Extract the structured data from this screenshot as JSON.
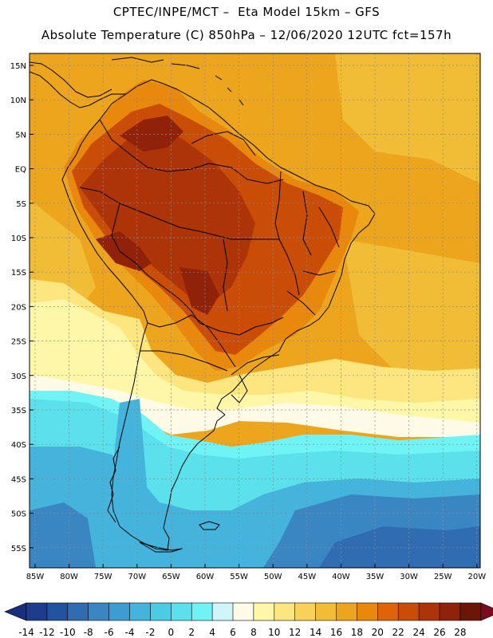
{
  "header": {
    "line1": "CPTEC/INPE/MCT –  Eta Model 15km – GFS",
    "line2": "Absolute Temperature (C) 850hPa – 12/06/2020 12UTC fct=157h"
  },
  "axes": {
    "lat_labels": [
      "15N",
      "10N",
      "5N",
      "EQ",
      "5S",
      "10S",
      "15S",
      "20S",
      "25S",
      "30S",
      "35S",
      "40S",
      "45S",
      "50S",
      "55S"
    ],
    "lon_labels": [
      "85W",
      "80W",
      "75W",
      "70W",
      "65W",
      "60W",
      "55W",
      "50W",
      "45W",
      "40W",
      "35W",
      "30W",
      "25W",
      "20W"
    ],
    "lat_values": [
      15,
      10,
      5,
      0,
      -5,
      -10,
      -15,
      -20,
      -25,
      -30,
      -35,
      -40,
      -45,
      -50,
      -55
    ],
    "lon_values": [
      -85,
      -80,
      -75,
      -70,
      -65,
      -60,
      -55,
      -50,
      -45,
      -40,
      -35,
      -30,
      -25,
      -20
    ]
  },
  "colorbar": {
    "labels": [
      "-14",
      "-12",
      "-10",
      "-8",
      "-6",
      "-4",
      "-2",
      "0",
      "2",
      "4",
      "6",
      "8",
      "10",
      "12",
      "14",
      "16",
      "18",
      "20",
      "22",
      "24",
      "26",
      "28"
    ],
    "colors": [
      "#1e3c8c",
      "#23529e",
      "#2f6cb2",
      "#3a86c2",
      "#3f9cd0",
      "#44b4dc",
      "#4ccbe4",
      "#5ae1ec",
      "#6ff3f5",
      "#cff4fa",
      "#fffbe6",
      "#fff7a8",
      "#fde680",
      "#f8d158",
      "#f2bd36",
      "#eda51e",
      "#e8880c",
      "#de6406",
      "#c94d06",
      "#ad3408",
      "#8f2208",
      "#6b1606"
    ],
    "end_low": "#1a2e80",
    "end_high": "#7a0a1e"
  },
  "map": {
    "title": "Absolute Temperature 850hPa field over South America",
    "colors": {
      "ocean_north": "#eda51e",
      "ocean_north_bright": "#f2bd36",
      "land_hot": "#c94d06",
      "land_hotter": "#ad3408",
      "land_hottest": "#8f2208",
      "warm": "#e8880c",
      "yellow": "#fde680",
      "pale_yellow": "#fff7a8",
      "cream": "#fffbe6",
      "cyan_light": "#cff4fa",
      "cyan": "#6ff3f5",
      "cyan_mid": "#5ae1ec",
      "blue_light": "#44b4dc",
      "blue_mid": "#3a86c2",
      "blue_dark": "#2f6cb2",
      "coast": "#000000",
      "grid": "#8a8a8a"
    }
  }
}
